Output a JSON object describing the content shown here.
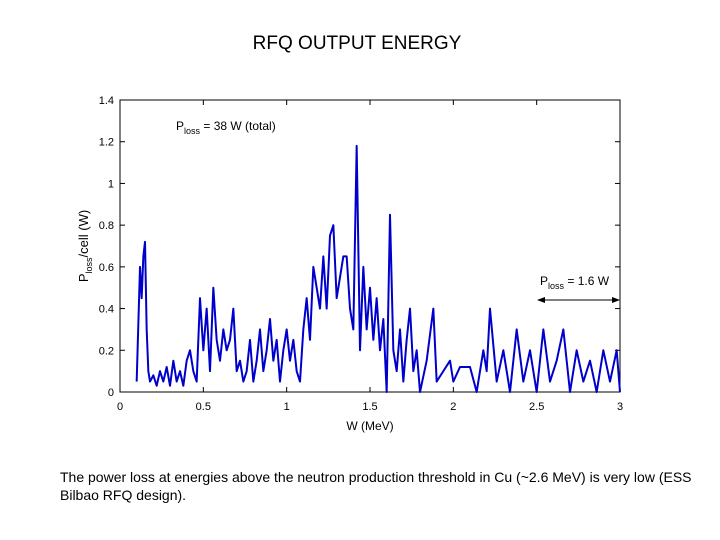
{
  "chart_data": {
    "type": "line",
    "title": "RFQ OUTPUT ENERGY",
    "x_label": "W (MeV)",
    "y_label": {
      "main": "P",
      "sub": "loss",
      "rest": "/cell (W)"
    },
    "annotations": [
      {
        "main": "P",
        "sub": "loss",
        "rest": " = 38 W (total)"
      },
      {
        "main": "P",
        "sub": "loss",
        "rest": " = 1.6 W"
      }
    ],
    "xlim": [
      0,
      3
    ],
    "xticks": [
      0,
      0.5,
      1,
      1.5,
      2,
      2.5,
      3
    ],
    "ylim": [
      0,
      1.4
    ],
    "yticks": [
      0,
      0.2,
      0.4,
      0.6,
      0.8,
      1,
      1.2,
      1.4
    ],
    "grid": false,
    "series": [
      {
        "color": "#0000cc",
        "x": [
          0.1,
          0.12,
          0.13,
          0.14,
          0.15,
          0.16,
          0.17,
          0.18,
          0.2,
          0.22,
          0.24,
          0.26,
          0.28,
          0.3,
          0.32,
          0.34,
          0.36,
          0.38,
          0.4,
          0.42,
          0.44,
          0.46,
          0.48,
          0.5,
          0.52,
          0.54,
          0.56,
          0.58,
          0.6,
          0.62,
          0.64,
          0.66,
          0.68,
          0.7,
          0.72,
          0.74,
          0.76,
          0.78,
          0.8,
          0.82,
          0.84,
          0.86,
          0.88,
          0.9,
          0.92,
          0.94,
          0.96,
          0.98,
          1.0,
          1.02,
          1.04,
          1.06,
          1.08,
          1.1,
          1.12,
          1.14,
          1.16,
          1.18,
          1.2,
          1.22,
          1.24,
          1.26,
          1.28,
          1.3,
          1.32,
          1.34,
          1.36,
          1.38,
          1.4,
          1.42,
          1.44,
          1.46,
          1.48,
          1.5,
          1.52,
          1.54,
          1.56,
          1.58,
          1.6,
          1.62,
          1.64,
          1.66,
          1.68,
          1.7,
          1.72,
          1.74,
          1.76,
          1.78,
          1.8,
          1.84,
          1.88,
          1.9,
          1.94,
          1.98,
          2.0,
          2.04,
          2.1,
          2.14,
          2.18,
          2.2,
          2.22,
          2.26,
          2.3,
          2.34,
          2.38,
          2.42,
          2.46,
          2.5,
          2.54,
          2.58,
          2.62,
          2.66,
          2.7,
          2.74,
          2.78,
          2.82,
          2.86,
          2.9,
          2.94,
          2.98,
          3.0
        ],
        "values": [
          0.05,
          0.6,
          0.45,
          0.65,
          0.72,
          0.3,
          0.1,
          0.05,
          0.08,
          0.03,
          0.1,
          0.05,
          0.12,
          0.03,
          0.15,
          0.05,
          0.1,
          0.03,
          0.15,
          0.2,
          0.1,
          0.05,
          0.45,
          0.2,
          0.4,
          0.1,
          0.5,
          0.25,
          0.15,
          0.3,
          0.2,
          0.25,
          0.4,
          0.1,
          0.15,
          0.05,
          0.1,
          0.25,
          0.05,
          0.15,
          0.3,
          0.1,
          0.2,
          0.35,
          0.15,
          0.25,
          0.05,
          0.2,
          0.3,
          0.15,
          0.25,
          0.1,
          0.05,
          0.3,
          0.45,
          0.25,
          0.6,
          0.5,
          0.4,
          0.65,
          0.4,
          0.75,
          0.8,
          0.45,
          0.55,
          0.65,
          0.65,
          0.4,
          0.3,
          1.18,
          0.2,
          0.6,
          0.3,
          0.5,
          0.25,
          0.45,
          0.2,
          0.35,
          0.0,
          0.85,
          0.2,
          0.1,
          0.3,
          0.05,
          0.25,
          0.4,
          0.1,
          0.2,
          0.0,
          0.15,
          0.4,
          0.05,
          0.1,
          0.15,
          0.05,
          0.12,
          0.12,
          0.0,
          0.2,
          0.1,
          0.4,
          0.05,
          0.2,
          0.0,
          0.3,
          0.05,
          0.2,
          0.0,
          0.3,
          0.05,
          0.15,
          0.3,
          0.0,
          0.2,
          0.05,
          0.15,
          0.0,
          0.2,
          0.05,
          0.2,
          0.0
        ]
      }
    ]
  },
  "caption": "The power loss at energies above the neutron production threshold in Cu (~2.6 MeV) is very low (ESS Bilbao RFQ design)."
}
